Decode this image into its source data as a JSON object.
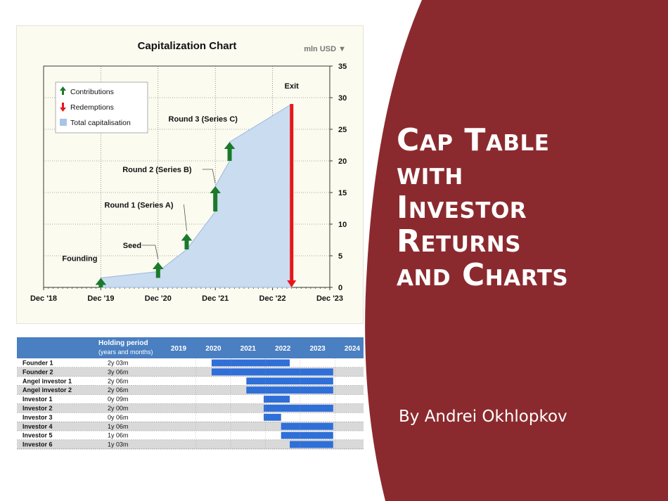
{
  "slide": {
    "title_lines": [
      "Cap Table",
      "with",
      "Investor",
      "Returns",
      "and Charts"
    ],
    "author": "By Andrei Okhlopkov",
    "accent_color": "#8b2a2e"
  },
  "chart_data": [
    {
      "type": "area",
      "title": "Capitalization Chart",
      "unit_label": "mln USD ▼",
      "x_tick_labels": [
        "Dec '18",
        "Dec '19",
        "Dec '20",
        "Dec '21",
        "Dec '22",
        "Dec '23"
      ],
      "y_ticks": [
        0,
        5,
        10,
        15,
        20,
        25,
        30,
        35
      ],
      "ylim": [
        0,
        35
      ],
      "grid": true,
      "legend_position": "top-left",
      "legend": [
        {
          "label": "Contributions",
          "symbol": "up-arrow",
          "color": "#1a7a2a"
        },
        {
          "label": "Redemptions",
          "symbol": "down-arrow",
          "color": "#e8161b"
        },
        {
          "label": "Total capitalisation",
          "symbol": "square",
          "color": "#a8c4e6"
        }
      ],
      "area_series": {
        "name": "Total capitalisation",
        "color": "#c9dcf0",
        "points": [
          {
            "x": "2019-12",
            "y": 1.5
          },
          {
            "x": "2020-12",
            "y": 2.5
          },
          {
            "x": "2021-06",
            "y": 6
          },
          {
            "x": "2021-12",
            "y": 12
          },
          {
            "x": "2021-12",
            "y": 16
          },
          {
            "x": "2022-03",
            "y": 20
          },
          {
            "x": "2022-03",
            "y": 23
          },
          {
            "x": "2023-04",
            "y": 29
          }
        ]
      },
      "events": [
        {
          "label": "Founding",
          "type": "contribution",
          "x": "2019-12",
          "from": 0,
          "to": 1.5,
          "color": "#1a7a2a"
        },
        {
          "label": "Seed",
          "type": "contribution",
          "x": "2020-12",
          "from": 1.5,
          "to": 4,
          "color": "#1a7a2a"
        },
        {
          "label": "Round 1 (Series A)",
          "type": "contribution",
          "x": "2021-06",
          "from": 6,
          "to": 8.5,
          "color": "#1a7a2a"
        },
        {
          "label": "Round 2 (Series B)",
          "type": "contribution",
          "x": "2021-12",
          "from": 12,
          "to": 16,
          "color": "#1a7a2a"
        },
        {
          "label": "Round 3 (Series C)",
          "type": "contribution",
          "x": "2022-03",
          "from": 20,
          "to": 23,
          "color": "#1a7a2a"
        },
        {
          "label": "Exit",
          "type": "redemption",
          "x": "2023-04",
          "from": 29,
          "to": 0,
          "color": "#e8161b"
        }
      ]
    },
    {
      "type": "table",
      "header": {
        "col1": "Holding period",
        "col1_sub": "(years and months)",
        "years": [
          "2019",
          "2020",
          "2021",
          "2022",
          "2023",
          "2024"
        ]
      },
      "header_color": "#4a7fc1",
      "bar_color": "#2f6fd8",
      "rows": [
        {
          "name": "Founder 1",
          "period": "2y 03m",
          "start": 2019.95,
          "end": 2022.2
        },
        {
          "name": "Founder 2",
          "period": "3y 06m",
          "start": 2019.95,
          "end": 2023.45
        },
        {
          "name": "Angel investor 1",
          "period": "2y 06m",
          "start": 2020.95,
          "end": 2023.45
        },
        {
          "name": "Angel investor 2",
          "period": "2y 06m",
          "start": 2020.95,
          "end": 2023.45
        },
        {
          "name": "Investor 1",
          "period": "0y 09m",
          "start": 2021.45,
          "end": 2022.2
        },
        {
          "name": "Investor 2",
          "period": "2y 00m",
          "start": 2021.45,
          "end": 2023.45
        },
        {
          "name": "Investor 3",
          "period": "0y 06m",
          "start": 2021.45,
          "end": 2021.95
        },
        {
          "name": "Investor 4",
          "period": "1y 06m",
          "start": 2021.95,
          "end": 2023.45
        },
        {
          "name": "Investor 5",
          "period": "1y 06m",
          "start": 2021.95,
          "end": 2023.45
        },
        {
          "name": "Investor 6",
          "period": "1y 03m",
          "start": 2022.2,
          "end": 2023.45
        }
      ]
    }
  ]
}
